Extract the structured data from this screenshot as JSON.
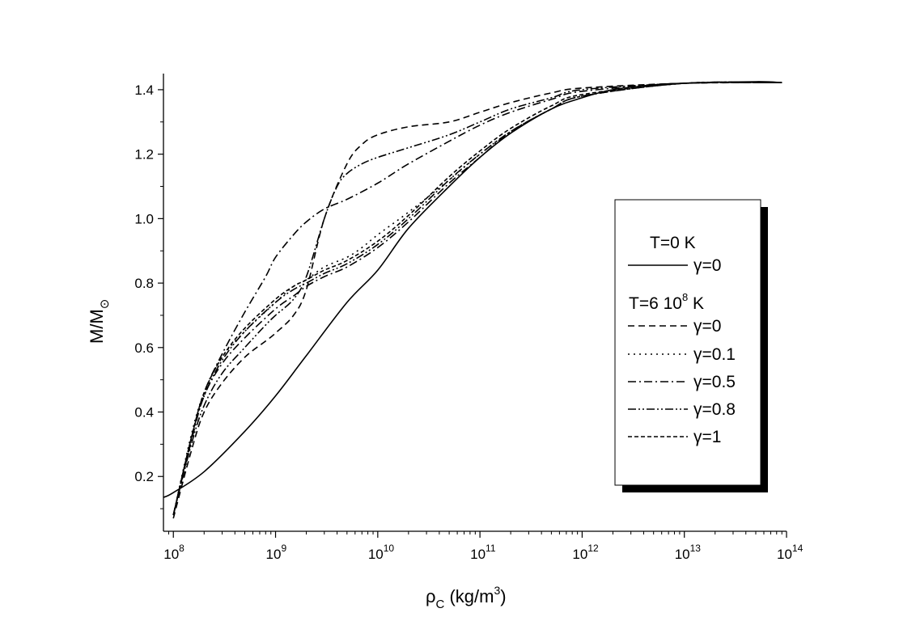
{
  "chart_data": {
    "type": "line",
    "x_scale": "log",
    "xlim": [
      80000000,
      100000000000000
    ],
    "ylim": [
      0.03,
      1.45
    ],
    "grid": false,
    "legend_position": "right",
    "x_ticks": [
      {
        "value": 100000000,
        "base": "10",
        "exp": "8"
      },
      {
        "value": 1000000000,
        "base": "10",
        "exp": "9"
      },
      {
        "value": 10000000000,
        "base": "10",
        "exp": "10"
      },
      {
        "value": 100000000000,
        "base": "10",
        "exp": "11"
      },
      {
        "value": 1000000000000,
        "base": "10",
        "exp": "12"
      },
      {
        "value": 10000000000000,
        "base": "10",
        "exp": "13"
      },
      {
        "value": 100000000000000,
        "base": "10",
        "exp": "14"
      }
    ],
    "y_ticks": [
      {
        "value": 0.2,
        "label": "0.2"
      },
      {
        "value": 0.4,
        "label": "0.4"
      },
      {
        "value": 0.6,
        "label": "0.6"
      },
      {
        "value": 0.8,
        "label": "0.8"
      },
      {
        "value": 1.0,
        "label": "1.0"
      },
      {
        "value": 1.2,
        "label": "1.2"
      },
      {
        "value": 1.4,
        "label": "1.4"
      }
    ],
    "xlabel": {
      "main": "ρ",
      "sub": "C",
      "unit": " (kg/m",
      "sup": "3",
      "close": ")"
    },
    "ylabel": {
      "main": "M/M",
      "sub": "⊙"
    },
    "legend": {
      "group1_title": "T=0 K",
      "group2_title_main": "T=6 10",
      "group2_title_sup": "8",
      "group2_title_end": " K"
    },
    "series": [
      {
        "name": "γ=0",
        "group": "T=0 K",
        "dash": "solid",
        "x": [
          80000000,
          100000000,
          200000000,
          500000000,
          1000000000,
          2000000000,
          5000000000,
          10000000000,
          20000000000,
          50000000000,
          100000000000,
          200000000000,
          500000000000,
          1000000000000,
          2000000000000,
          5000000000000,
          10000000000000,
          50000000000000,
          90000000000000
        ],
        "y": [
          0.135,
          0.15,
          0.215,
          0.34,
          0.45,
          0.575,
          0.74,
          0.84,
          0.97,
          1.1,
          1.19,
          1.265,
          1.34,
          1.375,
          1.4,
          1.415,
          1.42,
          1.425,
          1.422
        ]
      },
      {
        "name": "γ=0",
        "group": "T=6 10^8 K",
        "dash": "8,5",
        "x": [
          100000000,
          150000000,
          200000000,
          300000000,
          500000000,
          800000000,
          1000000000,
          1500000000,
          2000000000,
          3000000000,
          5000000000,
          7000000000,
          10000000000,
          20000000000,
          50000000000,
          100000000000,
          200000000000,
          500000000000,
          1000000000000,
          10000000000000,
          90000000000000
        ],
        "y": [
          0.07,
          0.28,
          0.4,
          0.49,
          0.57,
          0.62,
          0.645,
          0.7,
          0.78,
          1.0,
          1.17,
          1.23,
          1.26,
          1.285,
          1.3,
          1.33,
          1.36,
          1.39,
          1.405,
          1.42,
          1.422
        ]
      },
      {
        "name": "γ=0.1",
        "group": "T=6 10^8 K",
        "dash": "2,5",
        "x": [
          100000000,
          150000000,
          200000000,
          300000000,
          500000000,
          1000000000,
          1500000000,
          2000000000,
          3000000000,
          5000000000,
          7000000000,
          10000000000,
          20000000000,
          50000000000,
          100000000000,
          200000000000,
          500000000000,
          1000000000000,
          10000000000000,
          90000000000000
        ],
        "y": [
          0.08,
          0.33,
          0.46,
          0.57,
          0.65,
          0.74,
          0.79,
          0.81,
          0.85,
          0.88,
          0.91,
          0.95,
          1.02,
          1.12,
          1.2,
          1.27,
          1.34,
          1.38,
          1.42,
          1.422
        ]
      },
      {
        "name": "γ=0.5",
        "group": "T=6 10^8 K",
        "dash": "10,4,2,4",
        "x": [
          100000000,
          150000000,
          200000000,
          300000000,
          500000000,
          1000000000,
          1500000000,
          2000000000,
          3000000000,
          5000000000,
          10000000000,
          20000000000,
          50000000000,
          100000000000,
          200000000000,
          500000000000,
          1000000000000,
          10000000000000,
          90000000000000
        ],
        "y": [
          0.08,
          0.31,
          0.45,
          0.55,
          0.63,
          0.72,
          0.76,
          0.79,
          0.82,
          0.85,
          0.91,
          0.99,
          1.11,
          1.19,
          1.27,
          1.34,
          1.38,
          1.42,
          1.422
        ]
      },
      {
        "name": "γ=0.8",
        "group": "T=6 10^8 K",
        "dash": "10,3,2,3,2,3",
        "x": [
          100000000,
          150000000,
          200000000,
          300000000,
          500000000,
          1000000000,
          1500000000,
          2000000000,
          3000000000,
          5000000000,
          10000000000,
          20000000000,
          50000000000,
          100000000000,
          200000000000,
          500000000000,
          1000000000000,
          10000000000000,
          90000000000000
        ],
        "y": [
          0.08,
          0.32,
          0.45,
          0.56,
          0.65,
          0.74,
          0.78,
          0.8,
          0.83,
          0.86,
          0.92,
          1.0,
          1.12,
          1.2,
          1.27,
          1.34,
          1.38,
          1.42,
          1.422
        ]
      },
      {
        "name": "γ=1",
        "group": "T=6 10^8 K",
        "dash": "5,3",
        "x": [
          100000000,
          150000000,
          200000000,
          300000000,
          500000000,
          1000000000,
          1500000000,
          2000000000,
          3000000000,
          5000000000,
          10000000000,
          20000000000,
          50000000000,
          100000000000,
          200000000000,
          500000000000,
          1000000000000,
          10000000000000,
          90000000000000
        ],
        "y": [
          0.08,
          0.32,
          0.46,
          0.57,
          0.66,
          0.75,
          0.79,
          0.81,
          0.84,
          0.87,
          0.93,
          1.01,
          1.13,
          1.21,
          1.28,
          1.35,
          1.385,
          1.42,
          1.422
        ]
      }
    ],
    "extra_curves": [
      {
        "note": "γ=0.5 strong-bump variant",
        "dash": "10,4,2,4",
        "x": [
          100000000,
          150000000,
          200000000,
          300000000,
          500000000,
          800000000,
          1000000000,
          1500000000,
          2000000000,
          3000000000,
          5000000000,
          10000000000,
          20000000000,
          50000000000,
          100000000000,
          200000000000,
          500000000000,
          1000000000000,
          10000000000000,
          90000000000000
        ],
        "y": [
          0.08,
          0.32,
          0.46,
          0.58,
          0.71,
          0.82,
          0.88,
          0.95,
          0.99,
          1.03,
          1.06,
          1.11,
          1.17,
          1.24,
          1.29,
          1.33,
          1.37,
          1.395,
          1.42,
          1.422
        ]
      },
      {
        "note": "γ=0.8 strong-bump variant",
        "dash": "10,3,2,3,2,3",
        "x": [
          100000000,
          150000000,
          200000000,
          300000000,
          500000000,
          800000000,
          1000000000,
          1500000000,
          2000000000,
          3000000000,
          4000000000,
          5000000000,
          7000000000,
          10000000000,
          20000000000,
          50000000000,
          100000000000,
          200000000000,
          500000000000,
          1000000000000,
          10000000000000,
          90000000000000
        ],
        "y": [
          0.08,
          0.3,
          0.42,
          0.52,
          0.6,
          0.67,
          0.7,
          0.75,
          0.82,
          1.0,
          1.1,
          1.14,
          1.17,
          1.19,
          1.22,
          1.26,
          1.3,
          1.34,
          1.375,
          1.4,
          1.42,
          1.422
        ]
      }
    ]
  }
}
